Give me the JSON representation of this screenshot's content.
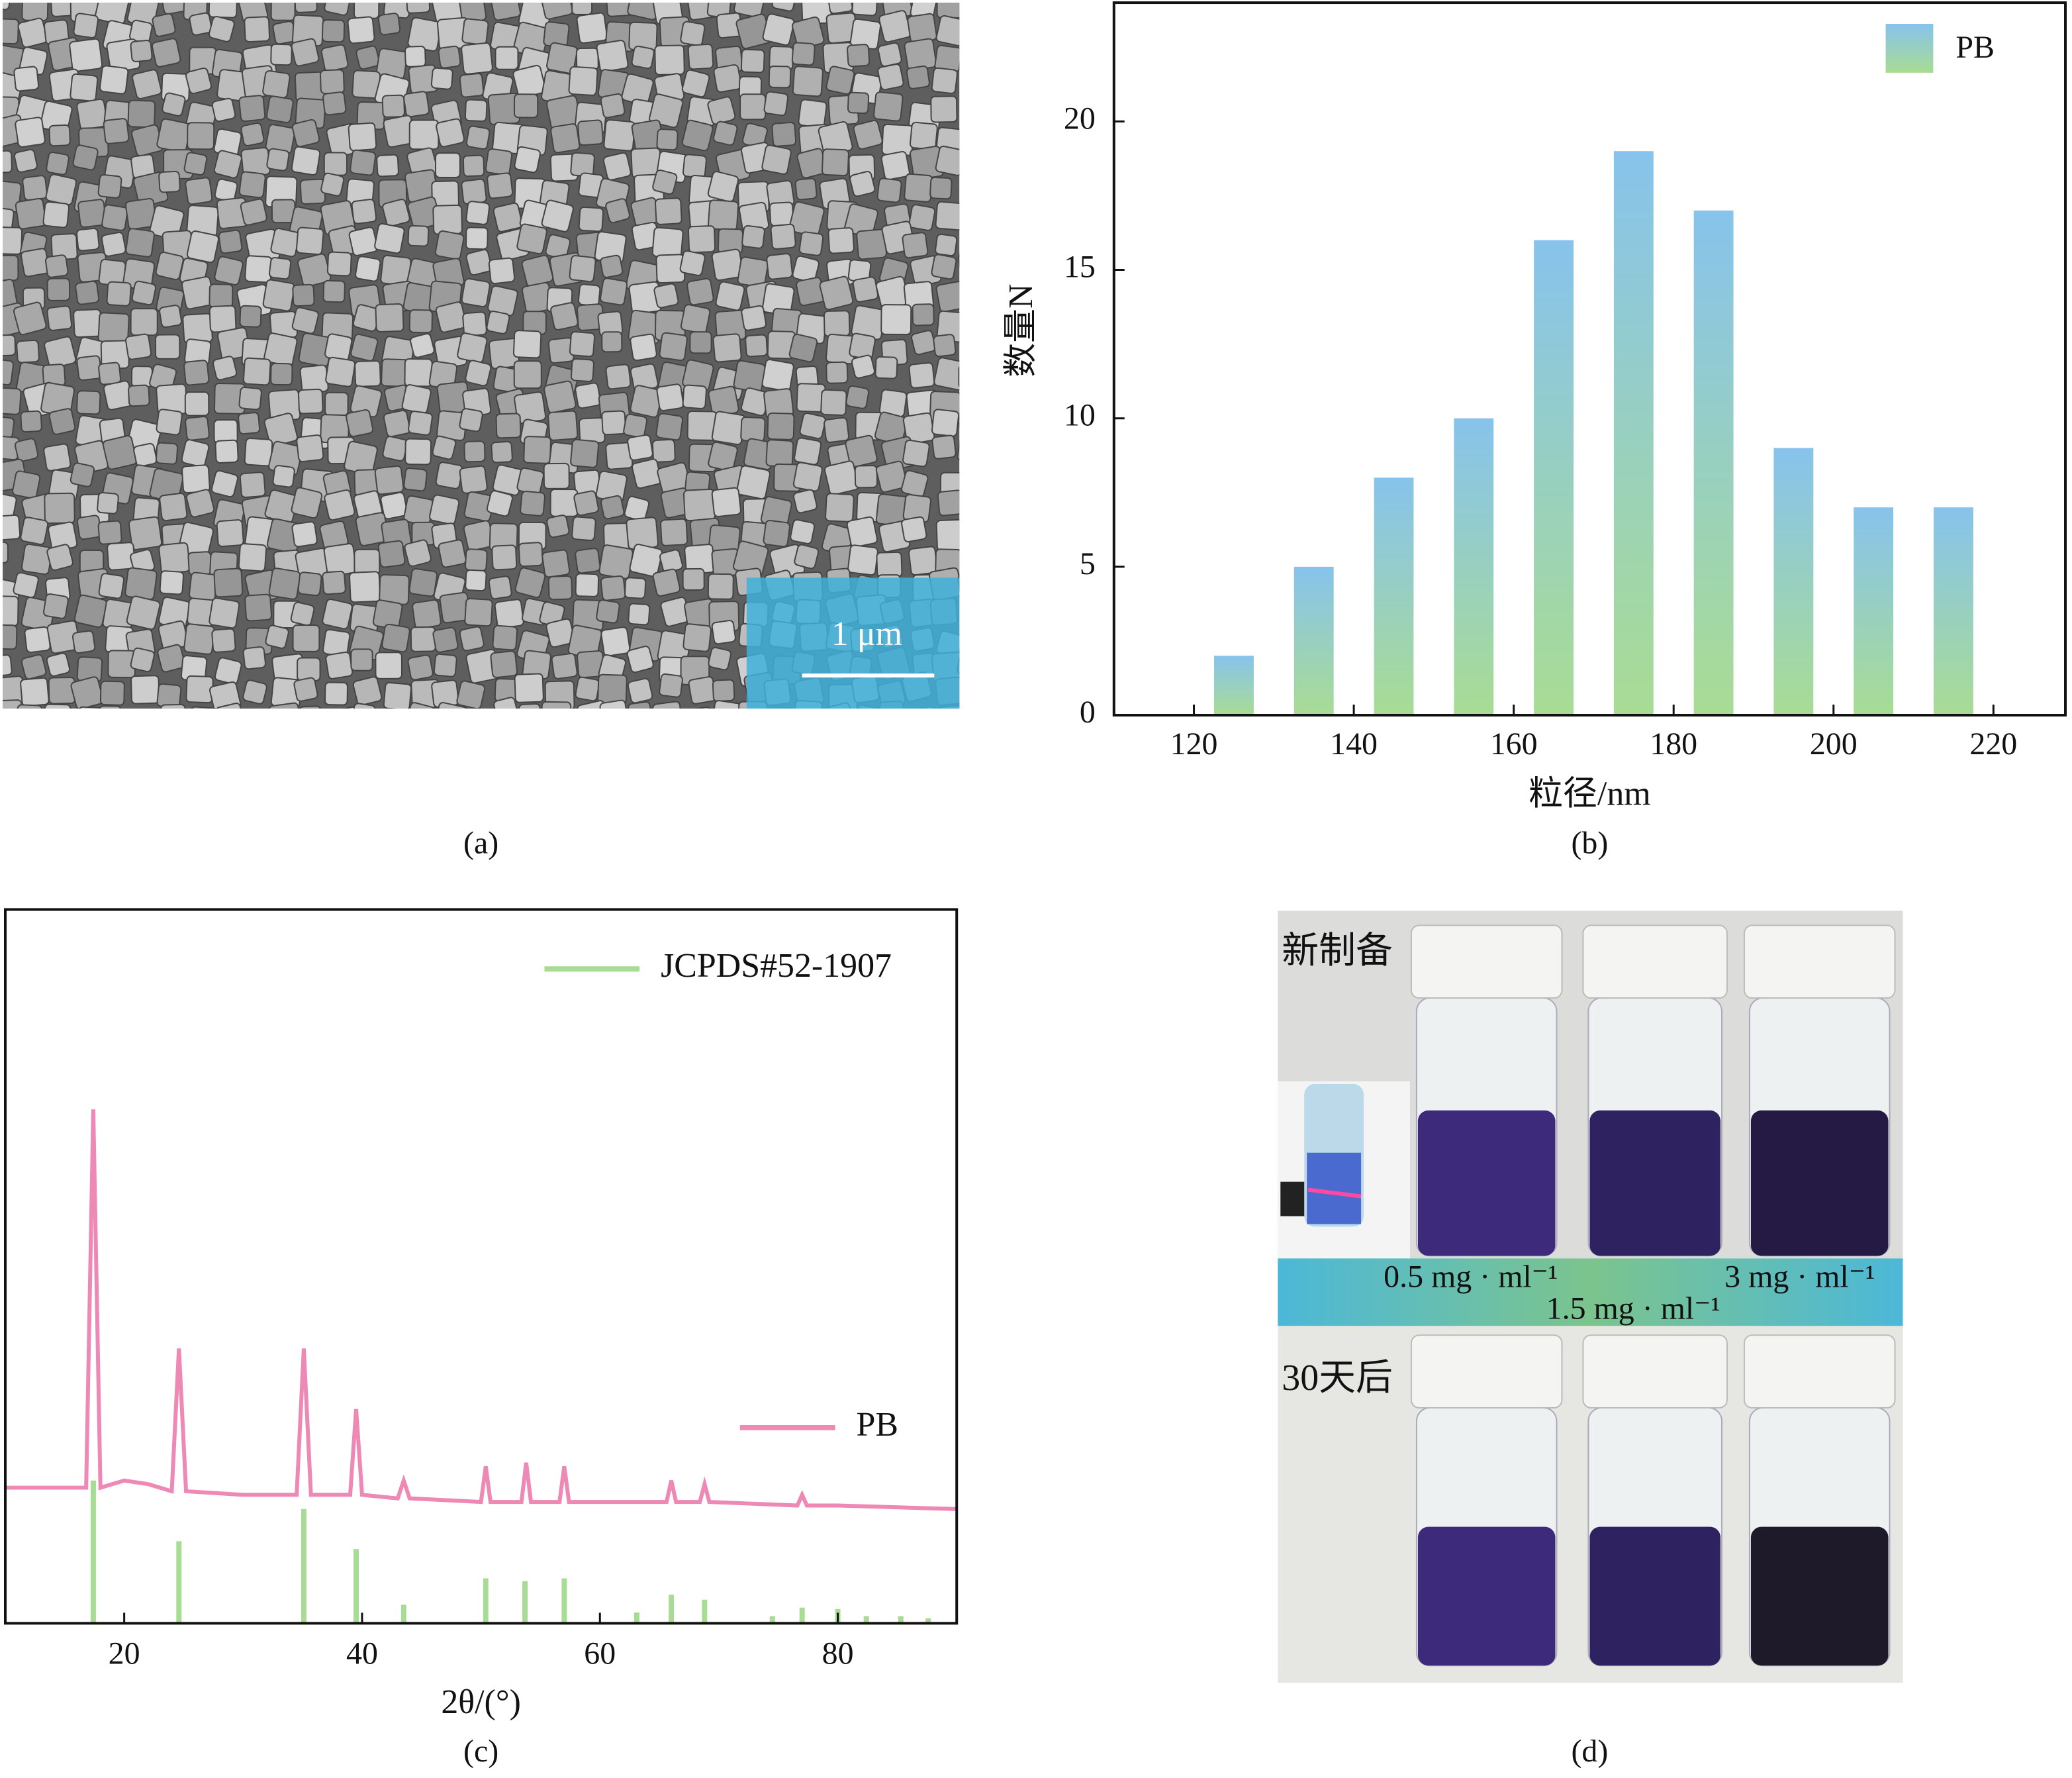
{
  "panels": {
    "captions": [
      "(a)",
      "(b)",
      "(c)",
      "(d)"
    ],
    "a": {
      "scale_bar": "1 μm"
    },
    "d": {
      "top_label": "新制备",
      "bottom_label": "30天后",
      "concentrations": [
        "0.5 mg · ml⁻¹",
        "1.5 mg · ml⁻¹",
        "3 mg · ml⁻¹"
      ]
    }
  },
  "chart_data": [
    {
      "type": "bar",
      "xlabel": "粒径/nm",
      "ylabel": "数量N",
      "x": [
        125,
        135,
        145,
        155,
        165,
        175,
        185,
        195,
        205,
        215
      ],
      "series": [
        {
          "name": "PB",
          "color": "#87c3ec",
          "gradient_to": "#a9dc94",
          "values": [
            2,
            5,
            8,
            10,
            16,
            19,
            17,
            9,
            7,
            7
          ]
        }
      ],
      "xlim": [
        110,
        229
      ],
      "ylim": [
        0,
        24
      ],
      "xticks": [
        120,
        140,
        160,
        180,
        200,
        220
      ],
      "yticks": [
        0,
        5,
        10,
        15,
        20
      ]
    },
    {
      "type": "line",
      "xlabel": "2θ/(°)",
      "series": [
        {
          "name": "JCPDS#52-1907",
          "color": "#a8dc94",
          "style": "stick",
          "x": [
            17.4,
            24.6,
            35.1,
            39.5,
            43.5,
            50.4,
            53.7,
            57,
            63.1,
            66,
            68.8,
            74.5,
            77,
            80,
            82.4,
            85.3,
            87.6
          ],
          "values": [
            20,
            11.5,
            16,
            10.4,
            2.6,
            6.3,
            5.9,
            6.3,
            1.5,
            4,
            3.3,
            1,
            2.2,
            2,
            1,
            1,
            0.7
          ]
        },
        {
          "name": "PB",
          "color": "#ee88b4",
          "style": "line",
          "x": [
            10,
            15,
            16.8,
            17.4,
            18,
            20,
            22,
            24,
            24.6,
            25.2,
            30,
            34.5,
            35.1,
            35.7,
            39,
            39.5,
            40,
            43,
            43.5,
            44,
            50,
            50.4,
            50.8,
            53.4,
            53.8,
            54.2,
            56.6,
            57,
            57.4,
            60,
            65.6,
            66,
            66.4,
            68.4,
            68.8,
            69.2,
            76.6,
            77,
            77.4,
            80,
            90
          ],
          "values": [
            19,
            19,
            19,
            72,
            19,
            20,
            19.5,
            18.5,
            38.5,
            18.5,
            18,
            18,
            38.5,
            18,
            18,
            30,
            18,
            17.5,
            20,
            17.5,
            17,
            22,
            17,
            17,
            22.5,
            17,
            17,
            22,
            17,
            17,
            17,
            20,
            17,
            17,
            19.5,
            17,
            16.5,
            18,
            16.5,
            16.5,
            16
          ]
        }
      ],
      "xlim": [
        10,
        90
      ],
      "ylim": [
        0,
        100
      ],
      "xticks": [
        20,
        40,
        60,
        80
      ]
    }
  ]
}
